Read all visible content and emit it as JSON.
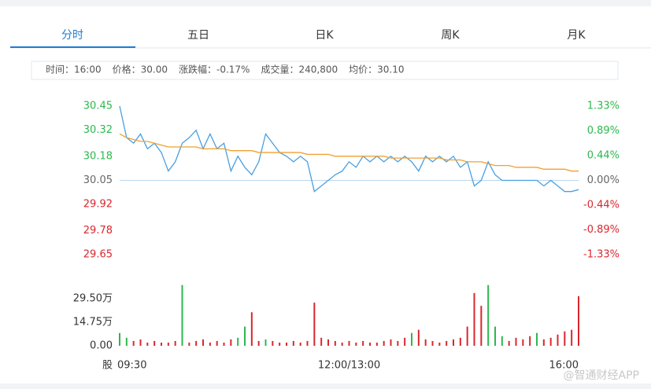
{
  "tabs": [
    "分时",
    "五日",
    "日K",
    "周K",
    "月K"
  ],
  "active_tab": 0,
  "info": [
    {
      "label": "时间：",
      "value": "16:00",
      "color": "#333333"
    },
    {
      "label": "价格：",
      "value": "30.00",
      "color": "#d9272e"
    },
    {
      "label": "涨跌幅：",
      "value": "-0.17%",
      "color": "#d9272e"
    },
    {
      "label": "成交量：",
      "value": "240,800",
      "color": "#333333"
    },
    {
      "label": "均价：",
      "value": "30.10",
      "color": "#2db84d"
    }
  ],
  "chart_data": [
    {
      "type": "line",
      "ylim": [
        29.65,
        30.45
      ],
      "yticks": [
        30.45,
        30.32,
        30.18,
        30.05,
        29.92,
        29.78,
        29.65
      ],
      "y2lim": [
        -1.33,
        1.33
      ],
      "y2ticks": [
        {
          "value": 1.33,
          "label": "1.33%"
        },
        {
          "value": 0.89,
          "label": "0.89%"
        },
        {
          "value": 0.44,
          "label": "0.44%"
        },
        {
          "value": 0,
          "label": "0.00%"
        },
        {
          "value": -0.44,
          "label": "-0.44%"
        },
        {
          "value": -0.89,
          "label": "-0.89%"
        },
        {
          "value": -1.33,
          "label": "-1.33%"
        }
      ],
      "tick_colors": {
        "up": "#2db84d",
        "flat": "#666666",
        "down": "#d9272e"
      },
      "series": [
        {
          "color": "#4a9fe0",
          "values": [
            30.45,
            30.28,
            30.25,
            30.3,
            30.22,
            30.25,
            30.2,
            30.1,
            30.15,
            30.25,
            30.28,
            30.32,
            30.22,
            30.3,
            30.22,
            30.25,
            30.1,
            30.18,
            30.12,
            30.08,
            30.15,
            30.3,
            30.25,
            30.2,
            30.18,
            30.15,
            30.18,
            30.15,
            29.99,
            30.02,
            30.05,
            30.08,
            30.1,
            30.15,
            30.12,
            30.18,
            30.15,
            30.18,
            30.15,
            30.18,
            30.15,
            30.18,
            30.15,
            30.1,
            30.18,
            30.15,
            30.18,
            30.15,
            30.18,
            30.12,
            30.15,
            30.02,
            30.05,
            30.15,
            30.08,
            30.05,
            30.05,
            30.05,
            30.05,
            30.05,
            30.05,
            30.02,
            30.05,
            30.02,
            29.99,
            29.99,
            30.0
          ]
        },
        {
          "color": "#f0a030",
          "values": [
            30.3,
            30.28,
            30.27,
            30.26,
            30.26,
            30.25,
            30.24,
            30.23,
            30.23,
            30.23,
            30.23,
            30.23,
            30.22,
            30.22,
            30.22,
            30.22,
            30.21,
            30.21,
            30.21,
            30.21,
            30.2,
            30.2,
            30.2,
            30.2,
            30.2,
            30.2,
            30.2,
            30.19,
            30.19,
            30.19,
            30.19,
            30.18,
            30.18,
            30.18,
            30.18,
            30.18,
            30.18,
            30.18,
            30.18,
            30.17,
            30.17,
            30.17,
            30.17,
            30.17,
            30.17,
            30.17,
            30.17,
            30.16,
            30.16,
            30.16,
            30.15,
            30.15,
            30.15,
            30.14,
            30.13,
            30.13,
            30.13,
            30.12,
            30.12,
            30.12,
            30.12,
            30.11,
            30.11,
            30.11,
            30.11,
            30.1,
            30.1
          ]
        }
      ]
    },
    {
      "type": "bar",
      "x_label": "股",
      "categories": [
        "09:30",
        null,
        null,
        null,
        null,
        null,
        null,
        null,
        null,
        null,
        null,
        null,
        null,
        null,
        null,
        null,
        null,
        null,
        null,
        null,
        null,
        null,
        null,
        null,
        null,
        null,
        null,
        null,
        null,
        null,
        null,
        null,
        null,
        "12:00/13:00",
        null,
        null,
        null,
        null,
        null,
        null,
        null,
        null,
        null,
        null,
        null,
        null,
        null,
        null,
        null,
        null,
        null,
        null,
        null,
        null,
        null,
        null,
        null,
        null,
        null,
        null,
        null,
        null,
        null,
        null,
        null,
        null,
        "16:00"
      ],
      "values": [
        8,
        5,
        3,
        4,
        2,
        3,
        2,
        2,
        3,
        38,
        2,
        3,
        4,
        2,
        3,
        2,
        4,
        5,
        12,
        21,
        3,
        4,
        3,
        2,
        2,
        3,
        2,
        3,
        27,
        5,
        4,
        3,
        2,
        3,
        2,
        3,
        2,
        2,
        3,
        4,
        3,
        5,
        8,
        10,
        4,
        3,
        2,
        3,
        4,
        5,
        12,
        33,
        25,
        38,
        12,
        6,
        3,
        5,
        4,
        6,
        8,
        4,
        5,
        7,
        9,
        10,
        31
      ],
      "colors": [
        "#2db84d",
        "#2db84d",
        "#d9272e",
        "#d9272e",
        "#d9272e",
        "#d9272e",
        "#d9272e",
        "#d9272e",
        "#d9272e",
        "#2db84d",
        "#d9272e",
        "#d9272e",
        "#d9272e",
        "#d9272e",
        "#d9272e",
        "#d9272e",
        "#d9272e",
        "#2db84d",
        "#2db84d",
        "#d9272e",
        "#d9272e",
        "#2db84d",
        "#d9272e",
        "#d9272e",
        "#d9272e",
        "#d9272e",
        "#d9272e",
        "#d9272e",
        "#d9272e",
        "#d9272e",
        "#d9272e",
        "#d9272e",
        "#d9272e",
        "#d9272e",
        "#d9272e",
        "#d9272e",
        "#d9272e",
        "#d9272e",
        "#d9272e",
        "#d9272e",
        "#d9272e",
        "#d9272e",
        "#2db84d",
        "#d9272e",
        "#d9272e",
        "#d9272e",
        "#d9272e",
        "#d9272e",
        "#d9272e",
        "#d9272e",
        "#d9272e",
        "#d9272e",
        "#d9272e",
        "#2db84d",
        "#2db84d",
        "#2db84d",
        "#d9272e",
        "#d9272e",
        "#d9272e",
        "#d9272e",
        "#2db84d",
        "#d9272e",
        "#d9272e",
        "#d9272e",
        "#d9272e",
        "#d9272e",
        "#d9272e"
      ],
      "ylim": [
        0,
        40
      ],
      "yticks": [
        {
          "value": 29.5,
          "label": "29.50万"
        },
        {
          "value": 14.75,
          "label": "14.75万"
        },
        {
          "value": 0,
          "label": "0.00"
        }
      ]
    }
  ],
  "watermark": "@智通财经APP"
}
